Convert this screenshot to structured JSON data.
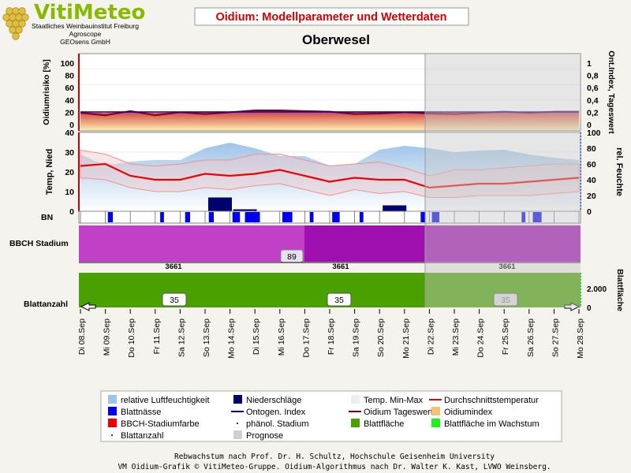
{
  "header": {
    "logo_name": "VitiMeteo",
    "logo_lines": [
      "Staatliches Weinbauinstitut Freiburg",
      "Agroscope",
      "GEOsens GmbH"
    ],
    "title": "Oidium: Modellparameter und Wetterdaten",
    "location": "Oberwesel"
  },
  "colors": {
    "title_red": "#cc0000",
    "humidity": "#9fc4e8",
    "temp_minmax_band": "#f2c8c8",
    "avg_temp": "#ee0000",
    "rain": "#00006e",
    "leaf_wetness": "#0000ee",
    "oidium_index_fill": "#f5c27a",
    "oidium_daily": "#880000",
    "ontogen_index": "#0000cc",
    "bbch": "#c040c8",
    "bbch_dark": "#a010b0",
    "leaf_area": "#4aa000",
    "forecast": "#d0d0d0"
  },
  "chart_data": [
    {
      "type": "area",
      "panel": "oidium",
      "ylabel_left": "Oidiumrisiko [%]",
      "ylabel_right": "Ont.Index, Tageswert",
      "ylim_left": [
        0,
        100
      ],
      "yticks_left": [
        "0",
        "20",
        "40",
        "60",
        "80",
        "100"
      ],
      "ylim_right": [
        0,
        1
      ],
      "yticks_right": [
        "0",
        "0,2",
        "0,4",
        "0,6",
        "0,8",
        "1"
      ],
      "x": [
        "Di 08.Sep",
        "Mi 09.Sep",
        "Do 10.Sep",
        "Fr 11.Sep",
        "Sa 12.Sep",
        "So 13.Sep",
        "Mo 14.Sep",
        "Di 15.Sep",
        "Mi 16.Sep",
        "Do 17.Sep",
        "Fr 18.Sep",
        "Sa 19.Sep",
        "So 20.Sep",
        "Mo 21.Sep",
        "Di 22.Sep",
        "Mi 23.Sep",
        "Do 24.Sep",
        "Fr 25.Sep",
        "Sa 26.Sep",
        "So 27.Sep",
        "Mo 28.Sep"
      ],
      "series": [
        {
          "name": "Oidiumindex",
          "values": [
            20,
            19,
            21,
            19,
            20,
            20,
            21,
            22,
            22,
            22,
            21,
            21,
            20,
            20,
            20,
            20,
            21,
            21,
            21,
            21,
            21
          ]
        },
        {
          "name": "Oidium Tageswert",
          "values": [
            19,
            15,
            22,
            15,
            20,
            17,
            20,
            23,
            23,
            22,
            21,
            17,
            18,
            20,
            18,
            17,
            19,
            21,
            19,
            21,
            21
          ]
        },
        {
          "name": "Ontogen. Index",
          "values": [
            0.2,
            0.2,
            0.2,
            0.2,
            0.2,
            0.2,
            0.2,
            0.2,
            0.2,
            0.2,
            0.2,
            0.2,
            0.2,
            0.2,
            0.2,
            0.2,
            0.2,
            0.2,
            0.2,
            0.2,
            0.2
          ]
        }
      ]
    },
    {
      "type": "line",
      "panel": "weather",
      "ylabel_left": "Temp, Nied",
      "ylabel_right": "rel. Feuchte",
      "ylim_left": [
        0,
        40
      ],
      "yticks_left": [
        "0",
        "10",
        "20",
        "30",
        "40"
      ],
      "ylim_right": [
        0,
        100
      ],
      "yticks_right": [
        "0",
        "20",
        "40",
        "60",
        "80",
        "100"
      ],
      "series": [
        {
          "name": "relative Luftfeuchtigkeit",
          "values": [
            72,
            58,
            63,
            65,
            65,
            80,
            87,
            80,
            70,
            70,
            58,
            60,
            78,
            83,
            80,
            75,
            77,
            78,
            72,
            68,
            65
          ]
        },
        {
          "name": "Durchschnittstemperatur",
          "values": [
            23,
            24,
            18,
            16,
            16,
            19,
            18,
            19,
            21,
            18,
            15,
            17,
            16,
            16,
            12,
            13,
            14,
            14,
            15,
            16,
            17
          ]
        },
        {
          "name": "Temp. Max",
          "values": [
            31,
            29,
            24,
            23,
            24,
            26,
            26,
            29,
            29,
            26,
            23,
            24,
            25,
            22,
            18,
            21,
            21,
            22,
            23,
            24,
            24
          ]
        },
        {
          "name": "Temp. Min",
          "values": [
            17,
            16,
            12,
            10,
            10,
            12,
            11,
            13,
            14,
            11,
            8,
            11,
            9,
            10,
            7,
            7,
            8,
            8,
            8,
            9,
            10
          ]
        },
        {
          "name": "Niederschläge",
          "values": [
            0,
            0,
            0,
            0,
            0,
            7,
            1,
            0,
            0,
            0,
            0,
            0,
            3,
            0,
            0,
            0,
            0,
            0,
            0,
            0,
            0
          ]
        }
      ]
    },
    {
      "type": "bar",
      "panel": "leaf-wetness",
      "ylabel": "BN",
      "wet_spans_days": [
        [
          1.1,
          1.3
        ],
        [
          3.2,
          3.35
        ],
        [
          4.2,
          4.4
        ],
        [
          5.15,
          5.35
        ],
        [
          6.1,
          6.4
        ],
        [
          6.6,
          7.2
        ],
        [
          8.1,
          8.5
        ],
        [
          9.2,
          9.35
        ],
        [
          10.1,
          10.4
        ],
        [
          11.2,
          11.35
        ],
        [
          13.65,
          13.85
        ],
        [
          14.1,
          14.4
        ],
        [
          17.7,
          17.85
        ],
        [
          18.15,
          18.5
        ]
      ]
    },
    {
      "type": "area",
      "panel": "bbch",
      "ylabel": "BBCH Stadium",
      "stage_label": "89",
      "ticks": [
        "3661",
        "3661",
        "3661"
      ]
    },
    {
      "type": "area",
      "panel": "leaf-area",
      "ylabel_left": "Blattanzahl",
      "ylabel_right": "Blattfläche",
      "yticks_right": [
        "0",
        "2.000"
      ],
      "leaf_count_labels": [
        "35",
        "35",
        "35"
      ]
    }
  ],
  "legend": {
    "items": [
      {
        "label": "relative Luftfeuchtigkeit",
        "swatch": "humidity"
      },
      {
        "label": "Niederschläge",
        "swatch": "rain"
      },
      {
        "label": "Temp. Min-Max",
        "swatch": "minmax"
      },
      {
        "label": "Durchschnittstemperatur",
        "swatch": "avgline"
      },
      {
        "label": "Blattnässe",
        "swatch": "leafwet"
      },
      {
        "label": "Ontogen. Index",
        "swatch": "ontoline"
      },
      {
        "label": "Oidium Tageswert",
        "swatch": "oidline"
      },
      {
        "label": "Oidiumindex",
        "swatch": "oidindex"
      },
      {
        "label": "BBCH-Stadiumfarbe",
        "swatch": "bbch"
      },
      {
        "label": "phänol. Stadium",
        "swatch": "dot"
      },
      {
        "label": "Blattfläche",
        "swatch": "leafarea"
      },
      {
        "label": "Blattfläche im Wachstum",
        "swatch": "leafgrow"
      },
      {
        "label": "Blattanzahl",
        "swatch": "dot"
      },
      {
        "label": "Prognose",
        "swatch": "forecast"
      }
    ]
  },
  "footer": {
    "line1": "Rebwachstum nach Prof. Dr. H. Schultz, Hochschule Geisenheim University",
    "line2": "VM Oidium-Grafik © VitiMeteo-Gruppe. Oidium-Algorithmus nach Dr. Walter K. Kast, LVWO Weinsberg."
  }
}
